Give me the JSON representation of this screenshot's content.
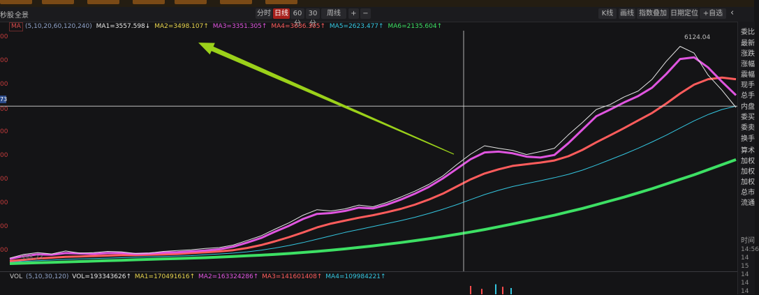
{
  "toolbar": {
    "left_labels": [
      "秒股",
      "全景"
    ],
    "period_buttons": [
      "分时",
      "日线",
      "60分",
      "30分",
      "周线"
    ],
    "active_period": "日线",
    "plus": "+",
    "minus": "−",
    "right_buttons": [
      "K线",
      "画线",
      "指数叠加",
      "日期定位",
      "+自选"
    ],
    "back_icon": "‹"
  },
  "legend": {
    "badge": "MA",
    "params": "(5,10,20,60,120,240)",
    "items": [
      {
        "text": "MA1=3557.598↓",
        "color": "#e6e6e6"
      },
      {
        "text": "MA2=3498.107↑",
        "color": "#e8d44d"
      },
      {
        "text": "MA3=3351.305↑",
        "color": "#e055e0"
      },
      {
        "text": "MA4=3036.305↑",
        "color": "#ff5c5c"
      },
      {
        "text": "MA5=2623.477↑",
        "color": "#34c6e0"
      },
      {
        "text": "MA6=2135.604↑",
        "color": "#3de064"
      }
    ]
  },
  "y_axis_labels": [
    "00",
    "00",
    "00",
    "00",
    "00",
    "00",
    "00",
    "00",
    "00",
    "00"
  ],
  "crosshair_value_tag": "73",
  "right_panel": {
    "items": [
      "委比",
      "最新",
      "涨跌",
      "涨幅",
      "震幅",
      "现手",
      "总手",
      "内盘",
      "委买",
      "委卖",
      "换手",
      "算术",
      "加权",
      "加权",
      "加权",
      "总市",
      "流通"
    ],
    "detail_header": "时间",
    "times": [
      "14:56",
      "14",
      "15",
      "14",
      "14",
      "14"
    ]
  },
  "vol_legend": {
    "badge": "VOL",
    "params": "(5,10,30,120)",
    "items": [
      {
        "text": "VOL=193343626↑",
        "color": "#e6e6e6"
      },
      {
        "text": "MA1=170491616↑",
        "color": "#e8d44d"
      },
      {
        "text": "MA2=163324286↑",
        "color": "#e055e0"
      },
      {
        "text": "MA3=141601408↑",
        "color": "#ff5c5c"
      },
      {
        "text": "MA4=109984221↑",
        "color": "#34c6e0"
      }
    ]
  },
  "chart_data": {
    "type": "line",
    "title": "",
    "annotations": [
      "6124.04",
      "998.23"
    ],
    "x": [
      0,
      1,
      2,
      3,
      4,
      5,
      6,
      7,
      8,
      9,
      10,
      11,
      12,
      13,
      14,
      15,
      16,
      17,
      18,
      19,
      20,
      21,
      22,
      23,
      24,
      25,
      26,
      27,
      28,
      29,
      30,
      31,
      32,
      33,
      34,
      35,
      36,
      37,
      38,
      39,
      40,
      41,
      42,
      43,
      44,
      45,
      46,
      47,
      48,
      49,
      50,
      51,
      52
    ],
    "series": [
      {
        "name": "MA1",
        "color": "#e6e6e6",
        "values": [
          1030,
          1120,
          1160,
          1130,
          1200,
          1150,
          1160,
          1190,
          1180,
          1140,
          1150,
          1190,
          1210,
          1230,
          1260,
          1280,
          1340,
          1450,
          1560,
          1720,
          1870,
          2050,
          2180,
          2150,
          2200,
          2290,
          2250,
          2350,
          2480,
          2620,
          2780,
          2980,
          3250,
          3500,
          3700,
          3640,
          3590,
          3490,
          3560,
          3640,
          3960,
          4250,
          4560,
          4680,
          4860,
          5000,
          5280,
          5700,
          6060,
          5900,
          5380,
          5020,
          4610
        ]
      },
      {
        "name": "MA3",
        "color": "#e055e0",
        "values": [
          1010,
          1080,
          1120,
          1110,
          1150,
          1140,
          1130,
          1150,
          1150,
          1130,
          1140,
          1160,
          1170,
          1190,
          1210,
          1240,
          1300,
          1400,
          1510,
          1660,
          1800,
          1960,
          2080,
          2100,
          2150,
          2230,
          2210,
          2300,
          2420,
          2560,
          2720,
          2920,
          3150,
          3380,
          3540,
          3560,
          3520,
          3440,
          3420,
          3480,
          3760,
          4080,
          4400,
          4560,
          4730,
          4880,
          5080,
          5400,
          5760,
          5800,
          5560,
          5220,
          4900
        ]
      },
      {
        "name": "MA4",
        "color": "#ff5c5c",
        "values": [
          960,
          990,
          1020,
          1040,
          1060,
          1070,
          1080,
          1090,
          1100,
          1100,
          1110,
          1120,
          1130,
          1150,
          1170,
          1190,
          1220,
          1270,
          1340,
          1430,
          1530,
          1640,
          1760,
          1850,
          1920,
          1990,
          2050,
          2120,
          2200,
          2300,
          2420,
          2560,
          2730,
          2900,
          3040,
          3140,
          3220,
          3260,
          3300,
          3350,
          3450,
          3600,
          3780,
          3950,
          4120,
          4300,
          4480,
          4700,
          4940,
          5150,
          5280,
          5320,
          5280
        ]
      },
      {
        "name": "MA5",
        "color": "#34c6e0",
        "values": [
          940,
          955,
          970,
          985,
          1000,
          1010,
          1020,
          1030,
          1040,
          1050,
          1060,
          1070,
          1080,
          1090,
          1110,
          1130,
          1150,
          1180,
          1220,
          1270,
          1330,
          1400,
          1480,
          1560,
          1640,
          1710,
          1780,
          1850,
          1920,
          2000,
          2090,
          2190,
          2300,
          2420,
          2540,
          2640,
          2730,
          2800,
          2870,
          2940,
          3020,
          3120,
          3240,
          3370,
          3500,
          3640,
          3790,
          3950,
          4120,
          4290,
          4440,
          4560,
          4640
        ]
      },
      {
        "name": "MA6",
        "color": "#3de064",
        "values": [
          900,
          910,
          920,
          930,
          940,
          950,
          960,
          970,
          980,
          990,
          1000,
          1010,
          1020,
          1030,
          1040,
          1055,
          1070,
          1085,
          1100,
          1120,
          1140,
          1165,
          1190,
          1220,
          1250,
          1285,
          1320,
          1360,
          1400,
          1445,
          1490,
          1540,
          1595,
          1650,
          1710,
          1775,
          1840,
          1910,
          1980,
          2050,
          2130,
          2210,
          2300,
          2390,
          2480,
          2580,
          2680,
          2790,
          2900,
          3010,
          3130,
          3250,
          3370
        ]
      }
    ],
    "ylim": [
      850,
      6300
    ],
    "crosshair_x": 32.5,
    "crosshair_y": 4640,
    "grid": false,
    "arrow": {
      "from_x": 31.8,
      "from_y": 3500,
      "to_x": 13.5,
      "to_y": 6150,
      "color": "#9bd11a"
    },
    "volume": {
      "ylim": [
        0,
        300000000
      ],
      "bars": [
        {
          "x": 33.0,
          "value": 200000000,
          "color": "#ff4d4d"
        },
        {
          "x": 33.8,
          "value": 130000000,
          "color": "#ff4d4d"
        },
        {
          "x": 34.8,
          "value": 240000000,
          "color": "#34c6e0"
        },
        {
          "x": 35.3,
          "value": 180000000,
          "color": "#ff4d4d"
        },
        {
          "x": 35.9,
          "value": 150000000,
          "color": "#34c6e0"
        }
      ]
    }
  }
}
